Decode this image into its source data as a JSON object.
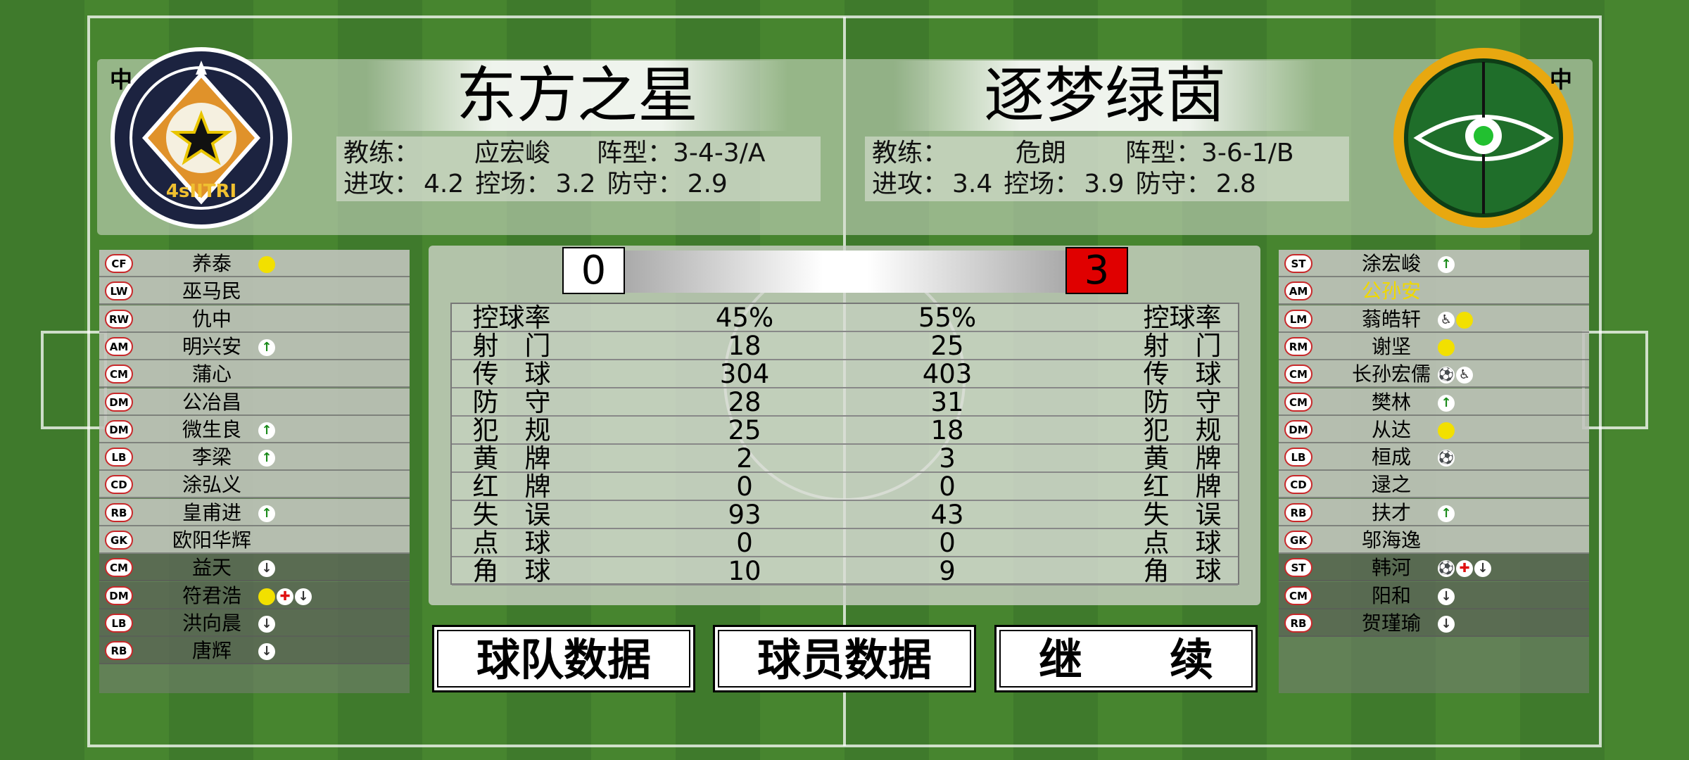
{
  "labels": {
    "corner": "中",
    "coach": "教练：",
    "formation": "阵型：",
    "attack": "进攻：",
    "control": "控场：",
    "defense": "防守："
  },
  "home": {
    "name": "东方之星",
    "badge_text": "4sIITRI",
    "coach": "应宏峻",
    "formation": "3-4-3/A",
    "attack": "4.2",
    "control": "3.2",
    "defense": "2.9",
    "score": "0",
    "starters": [
      {
        "pos": "CF",
        "name": "养泰",
        "events": [
          "yellow-card"
        ]
      },
      {
        "pos": "LW",
        "name": "巫马民",
        "events": []
      },
      {
        "pos": "RW",
        "name": "仇中",
        "events": []
      },
      {
        "pos": "AM",
        "name": "明兴安",
        "events": [
          "sub-in"
        ]
      },
      {
        "pos": "CM",
        "name": "蒲心",
        "events": []
      },
      {
        "pos": "DM",
        "name": "公冶昌",
        "events": []
      },
      {
        "pos": "DM",
        "name": "微生良",
        "events": [
          "sub-in"
        ]
      },
      {
        "pos": "LB",
        "name": "李梁",
        "events": [
          "sub-in"
        ]
      },
      {
        "pos": "CD",
        "name": "涂弘义",
        "events": []
      },
      {
        "pos": "RB",
        "name": "皇甫进",
        "events": [
          "sub-in"
        ]
      },
      {
        "pos": "GK",
        "name": "欧阳华辉",
        "events": []
      }
    ],
    "subs": [
      {
        "pos": "CM",
        "name": "益天",
        "events": [
          "sub-out"
        ]
      },
      {
        "pos": "DM",
        "name": "符君浩",
        "events": [
          "yellow-card",
          "red-cross",
          "sub-out"
        ]
      },
      {
        "pos": "LB",
        "name": "洪向晨",
        "events": [
          "sub-out"
        ]
      },
      {
        "pos": "RB",
        "name": "唐辉",
        "events": [
          "sub-out"
        ]
      }
    ]
  },
  "away": {
    "name": "逐梦绿茵",
    "coach": "危朗",
    "formation": "3-6-1/B",
    "attack": "3.4",
    "control": "3.9",
    "defense": "2.8",
    "score": "3",
    "starters": [
      {
        "pos": "ST",
        "name": "涂宏峻",
        "events": [
          "sub-in"
        ]
      },
      {
        "pos": "AM",
        "name": "公孙安",
        "events": [],
        "highlight": true
      },
      {
        "pos": "LM",
        "name": "蓊皓轩",
        "events": [
          "assist",
          "yellow-card"
        ]
      },
      {
        "pos": "RM",
        "name": "谢坚",
        "events": [
          "yellow-card"
        ]
      },
      {
        "pos": "CM",
        "name": "长孙宏儒",
        "events": [
          "goal",
          "assist"
        ]
      },
      {
        "pos": "CM",
        "name": "樊林",
        "events": [
          "sub-in"
        ]
      },
      {
        "pos": "DM",
        "name": "从达",
        "events": [
          "yellow-card"
        ]
      },
      {
        "pos": "LB",
        "name": "桓成",
        "events": [
          "goal"
        ]
      },
      {
        "pos": "CD",
        "name": "逯之",
        "events": []
      },
      {
        "pos": "RB",
        "name": "扶才",
        "events": [
          "sub-in"
        ]
      },
      {
        "pos": "GK",
        "name": "邬海逸",
        "events": []
      }
    ],
    "subs": [
      {
        "pos": "ST",
        "name": "韩河",
        "events": [
          "goal",
          "red-cross",
          "sub-out"
        ]
      },
      {
        "pos": "CM",
        "name": "阳和",
        "events": [
          "sub-out"
        ]
      },
      {
        "pos": "RB",
        "name": "贺瑾瑜",
        "events": [
          "sub-out"
        ]
      }
    ]
  },
  "stats": [
    {
      "label": "控球率",
      "home": "45%",
      "away": "55%"
    },
    {
      "label": "射　门",
      "home": "18",
      "away": "25"
    },
    {
      "label": "传　球",
      "home": "304",
      "away": "403"
    },
    {
      "label": "防　守",
      "home": "28",
      "away": "31"
    },
    {
      "label": "犯　规",
      "home": "25",
      "away": "18"
    },
    {
      "label": "黄　牌",
      "home": "2",
      "away": "3"
    },
    {
      "label": "红　牌",
      "home": "0",
      "away": "0"
    },
    {
      "label": "失　误",
      "home": "93",
      "away": "43"
    },
    {
      "label": "点　球",
      "home": "0",
      "away": "0"
    },
    {
      "label": "角　球",
      "home": "10",
      "away": "9"
    }
  ],
  "buttons": [
    "球队数据",
    "球员数据",
    "继　　续"
  ]
}
